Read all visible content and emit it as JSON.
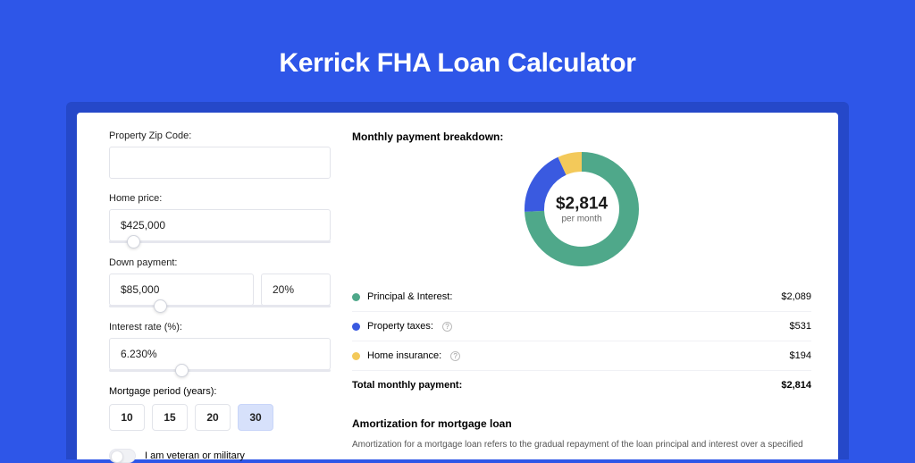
{
  "page": {
    "title": "Kerrick FHA Loan Calculator",
    "background_color": "#2e56e8",
    "shadow_color": "#2548c9"
  },
  "form": {
    "zip": {
      "label": "Property Zip Code:",
      "value": ""
    },
    "home_price": {
      "label": "Home price:",
      "value": "$425,000",
      "slider_pct": 8
    },
    "down_payment": {
      "label": "Down payment:",
      "value": "$85,000",
      "pct": "20%",
      "slider_pct": 20
    },
    "interest_rate": {
      "label": "Interest rate (%):",
      "value": "6.230%",
      "slider_pct": 30
    },
    "mortgage_period": {
      "label": "Mortgage period (years):",
      "options": [
        "10",
        "15",
        "20",
        "30"
      ],
      "selected": "30"
    },
    "veteran": {
      "label": "I am veteran or military",
      "checked": false
    }
  },
  "breakdown": {
    "title": "Monthly payment breakdown:",
    "donut": {
      "amount": "$2,814",
      "sub": "per month",
      "slices": [
        {
          "label": "Principal & Interest",
          "value": 2089,
          "pct": 74.2,
          "color": "#4fa88a"
        },
        {
          "label": "Property taxes",
          "value": 531,
          "pct": 18.9,
          "color": "#3a5ae0"
        },
        {
          "label": "Home insurance",
          "value": 194,
          "pct": 6.9,
          "color": "#f3c95a"
        }
      ],
      "thickness": 22,
      "size": 128
    },
    "rows": [
      {
        "dot": "#4fa88a",
        "label": "Principal & Interest:",
        "info": false,
        "value": "$2,089"
      },
      {
        "dot": "#3a5ae0",
        "label": "Property taxes:",
        "info": true,
        "value": "$531"
      },
      {
        "dot": "#f3c95a",
        "label": "Home insurance:",
        "info": true,
        "value": "$194"
      }
    ],
    "total": {
      "label": "Total monthly payment:",
      "value": "$2,814"
    }
  },
  "amortization": {
    "title": "Amortization for mortgage loan",
    "text": "Amortization for a mortgage loan refers to the gradual repayment of the loan principal and interest over a specified"
  }
}
